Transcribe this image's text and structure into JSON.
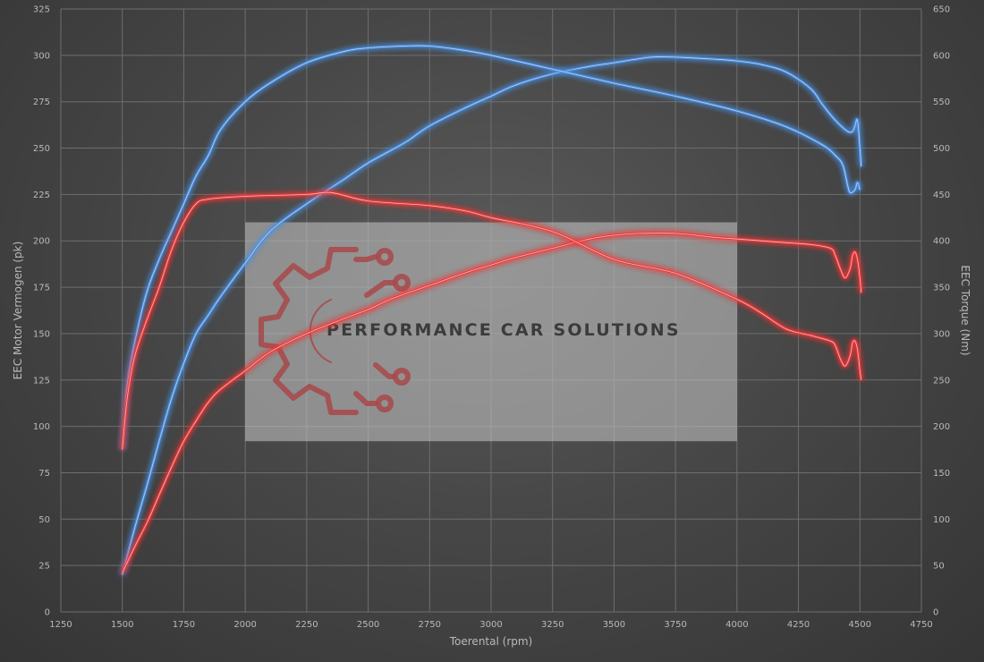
{
  "chart_data": {
    "type": "line",
    "xlabel": "Toerental (rpm)",
    "ylabel_left": "EEC Motor Vermogen (pk)",
    "ylabel_right": "EEC Torque (Nm)",
    "xlim": [
      1250,
      4750
    ],
    "ylim_left": [
      0,
      325
    ],
    "ylim_right": [
      0,
      650
    ],
    "x_ticks": [
      1250,
      1500,
      1750,
      2000,
      2250,
      2500,
      2750,
      3000,
      3250,
      3500,
      3750,
      4000,
      4250,
      4500,
      4750
    ],
    "y_ticks_left": [
      0,
      25,
      50,
      75,
      100,
      125,
      150,
      175,
      200,
      225,
      250,
      275,
      300,
      325
    ],
    "y_ticks_right": [
      0,
      50,
      100,
      150,
      200,
      250,
      300,
      350,
      400,
      450,
      500,
      550,
      600,
      650
    ],
    "grid": true,
    "series": [
      {
        "color": "#4a8fe0",
        "axis": "left",
        "points": [
          [
            1500,
            20
          ],
          [
            1550,
            45
          ],
          [
            1600,
            68
          ],
          [
            1650,
            92
          ],
          [
            1700,
            115
          ],
          [
            1750,
            134
          ],
          [
            1800,
            150
          ],
          [
            1850,
            160
          ],
          [
            1900,
            170
          ],
          [
            2000,
            188
          ],
          [
            2100,
            205
          ],
          [
            2250,
            220
          ],
          [
            2400,
            233
          ],
          [
            2500,
            242
          ],
          [
            2650,
            253
          ],
          [
            2750,
            262
          ],
          [
            2900,
            272
          ],
          [
            3000,
            278
          ],
          [
            3100,
            284
          ],
          [
            3250,
            290
          ],
          [
            3400,
            294
          ],
          [
            3500,
            296
          ],
          [
            3650,
            299
          ],
          [
            3750,
            299
          ],
          [
            3900,
            298
          ],
          [
            4000,
            297
          ],
          [
            4100,
            295
          ],
          [
            4200,
            291
          ],
          [
            4300,
            282
          ],
          [
            4350,
            273
          ],
          [
            4400,
            265
          ],
          [
            4450,
            259
          ],
          [
            4470,
            259
          ],
          [
            4480,
            262
          ],
          [
            4490,
            265
          ],
          [
            4500,
            250
          ],
          [
            4505,
            240
          ]
        ]
      },
      {
        "color": "#4a8fe0",
        "axis": "right",
        "points": [
          [
            1500,
            175
          ],
          [
            1510,
            210
          ],
          [
            1520,
            245
          ],
          [
            1550,
            290
          ],
          [
            1600,
            345
          ],
          [
            1650,
            380
          ],
          [
            1700,
            410
          ],
          [
            1750,
            440
          ],
          [
            1800,
            470
          ],
          [
            1850,
            492
          ],
          [
            1900,
            520
          ],
          [
            2000,
            550
          ],
          [
            2100,
            570
          ],
          [
            2250,
            592
          ],
          [
            2400,
            604
          ],
          [
            2500,
            608
          ],
          [
            2650,
            610
          ],
          [
            2750,
            610
          ],
          [
            2900,
            605
          ],
          [
            3000,
            600
          ],
          [
            3250,
            585
          ],
          [
            3500,
            570
          ],
          [
            3750,
            556
          ],
          [
            4000,
            540
          ],
          [
            4200,
            523
          ],
          [
            4350,
            503
          ],
          [
            4400,
            492
          ],
          [
            4430,
            482
          ],
          [
            4450,
            460
          ],
          [
            4460,
            452
          ],
          [
            4480,
            455
          ],
          [
            4490,
            463
          ],
          [
            4500,
            455
          ]
        ]
      },
      {
        "color": "#ee3838",
        "axis": "left",
        "points": [
          [
            1500,
            21
          ],
          [
            1550,
            35
          ],
          [
            1600,
            48
          ],
          [
            1650,
            63
          ],
          [
            1700,
            78
          ],
          [
            1750,
            92
          ],
          [
            1800,
            103
          ],
          [
            1850,
            113
          ],
          [
            1900,
            120
          ],
          [
            2000,
            130
          ],
          [
            2100,
            140
          ],
          [
            2250,
            150
          ],
          [
            2400,
            158
          ],
          [
            2500,
            163
          ],
          [
            2600,
            169
          ],
          [
            2750,
            176
          ],
          [
            2900,
            183
          ],
          [
            3000,
            187
          ],
          [
            3100,
            191
          ],
          [
            3250,
            196
          ],
          [
            3400,
            201
          ],
          [
            3500,
            203
          ],
          [
            3600,
            204
          ],
          [
            3750,
            204
          ],
          [
            3900,
            202
          ],
          [
            4000,
            201
          ],
          [
            4100,
            200
          ],
          [
            4200,
            199
          ],
          [
            4300,
            198
          ],
          [
            4380,
            196
          ],
          [
            4400,
            192
          ],
          [
            4420,
            185
          ],
          [
            4440,
            180
          ],
          [
            4460,
            185
          ],
          [
            4470,
            192
          ],
          [
            4480,
            194
          ],
          [
            4490,
            190
          ],
          [
            4500,
            180
          ],
          [
            4505,
            172
          ]
        ]
      },
      {
        "color": "#ee3838",
        "axis": "right",
        "points": [
          [
            1500,
            175
          ],
          [
            1520,
            230
          ],
          [
            1550,
            275
          ],
          [
            1600,
            315
          ],
          [
            1650,
            350
          ],
          [
            1700,
            390
          ],
          [
            1750,
            420
          ],
          [
            1800,
            440
          ],
          [
            1850,
            445
          ],
          [
            2000,
            448
          ],
          [
            2250,
            450
          ],
          [
            2350,
            452
          ],
          [
            2500,
            443
          ],
          [
            2750,
            438
          ],
          [
            2900,
            432
          ],
          [
            3000,
            425
          ],
          [
            3250,
            410
          ],
          [
            3500,
            380
          ],
          [
            3750,
            365
          ],
          [
            4000,
            337
          ],
          [
            4100,
            322
          ],
          [
            4200,
            305
          ],
          [
            4300,
            298
          ],
          [
            4380,
            292
          ],
          [
            4400,
            287
          ],
          [
            4420,
            273
          ],
          [
            4440,
            265
          ],
          [
            4460,
            276
          ],
          [
            4470,
            290
          ],
          [
            4480,
            292
          ],
          [
            4490,
            283
          ],
          [
            4500,
            260
          ],
          [
            4505,
            250
          ]
        ]
      }
    ]
  },
  "watermark": {
    "text": "PERFORMANCE CAR SOLUTIONS",
    "logo_icon": "gear-circuit-icon",
    "box_x_range": [
      2000,
      4000
    ],
    "box_y_range_left": [
      92,
      210
    ]
  }
}
